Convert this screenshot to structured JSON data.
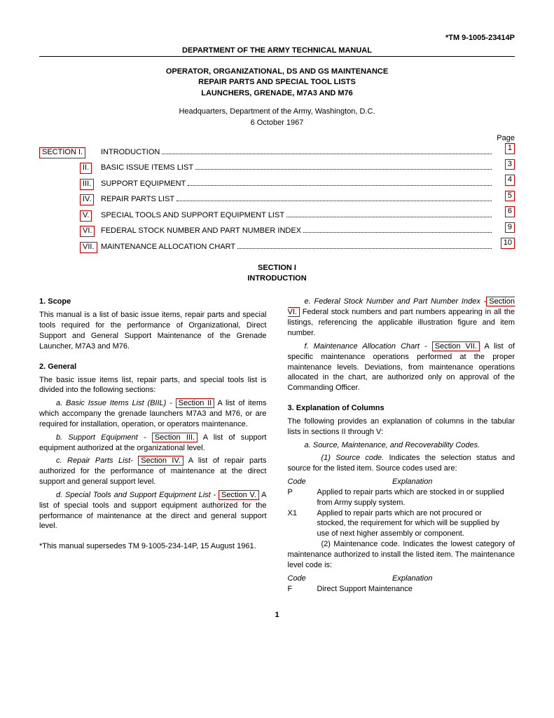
{
  "doc_number": "*TM 9-1005-23414P",
  "header_title": "DEPARTMENT OF THE ARMY TECHNICAL MANUAL",
  "main_title_lines": [
    "OPERATOR, ORGANIZATIONAL, DS AND GS MAINTENANCE",
    "REPAIR PARTS AND SPECIAL TOOL LISTS",
    "LAUNCHERS, GRENADE, M7A3 AND M76"
  ],
  "hq": "Headquarters, Department of the Army, Washington, D.C.",
  "date": "6 October 1967",
  "page_label": "Page",
  "toc": [
    {
      "section": "SECTION  I.",
      "title": "INTRODUCTION",
      "page": "1"
    },
    {
      "section": "II.",
      "title": "BASIC ISSUE ITEMS LIST",
      "page": "3"
    },
    {
      "section": "III.",
      "title": "SUPPORT EQUIPMENT",
      "page": "4"
    },
    {
      "section": "IV.",
      "title": "REPAIR PARTS LIST",
      "page": "5"
    },
    {
      "section": "V.",
      "title": "SPECIAL TOOLS AND SUPPORT EQUIPMENT LIST",
      "page": "6"
    },
    {
      "section": "VI.",
      "title": "FEDERAL STOCK NUMBER AND PART NUMBER INDEX",
      "page": "9"
    },
    {
      "section": "VII.",
      "title": "MAINTENANCE ALLOCATION CHART",
      "page": "10"
    }
  ],
  "section_heading": [
    "SECTION I",
    "INTRODUCTION"
  ],
  "left_col": {
    "scope_head": "1.    Scope",
    "scope_body": "This manual is a list of basic issue items, repair parts and special tools required for the performance of Organizational, Direct Support and General Support Maintenance of the Grenade Launcher, M7A3 and M76.",
    "general_head": "2.    General",
    "general_body": "The basic issue items list, repair parts, and special tools list is divided into the following sections:",
    "a_pre": "a.   Basic Issue Items List (BIIL) - ",
    "a_link": "Section  II",
    "a_post": " A list of items which accompany the grenade launchers M7A3 and M76, or are required for installation, operation, or operators maintenance.",
    "b_pre": "b.   Support Equipment - ",
    "b_link": "Section  III.",
    "b_post": "   A list of support equipment authorized at the organizational level.",
    "c_pre": "c.   Repair Parts List- ",
    "c_link": "Section IV.",
    "c_post": "  A list of repair parts authorized for the performance of maintenance at the direct support and general support level.",
    "d_pre": "d.  Special Tools and Support Equipment List - ",
    "d_link": "Section V.",
    "d_post": "  A list of special tools and support equipment authorized for the performance of maintenance at the direct and general support level.",
    "supersedes": "*This manual supersedes TM 9-1005-234-14P, 15 August 1961."
  },
  "right_col": {
    "e_pre": "e.    Federal Stock Number and Part Number Index -",
    "e_link": "Section VI.",
    "e_post": "  Federal stock numbers and part numbers appearing in all the listings, referencing the applicable illustration figure and item number.",
    "f_pre": "f.    Maintenance Allocation Chart - ",
    "f_link": "Section VII.",
    "f_post": " A list of specific maintenance operations performed at the proper maintenance levels.   Deviations, from maintenance operations allocated in the chart, are authorized only on approval of the Commanding Officer.",
    "expl_head": "3.    Explanation of Columns",
    "expl_body": "The following provides an explanation of columns in the tabular lists in sections II through V:",
    "a_line": "a.   Source,   Maintenance,   and   Recoverability Codes.",
    "sc_line": "(1) Source code.    Indicates the selection status and source for the listed item.   Source codes used are:",
    "code_header_code": "Code",
    "code_header_exp": "Explanation",
    "row_p_code": "P",
    "row_p_exp": "Applied to repair parts which are stocked in or supplied from Army supply system.",
    "row_x1_code": "X1",
    "row_x1_exp": "Applied to repair parts which are not procured or stocked, the requirement for which will be supplied by use of next higher assembly or component.",
    "mc_line": "(2) Maintenance code.    Indicates the lowest category of maintenance authorized to install the listed item.   The maintenance level code is:",
    "row_f_code": "F",
    "row_f_exp": "Direct Support Maintenance"
  },
  "page_number": "1"
}
